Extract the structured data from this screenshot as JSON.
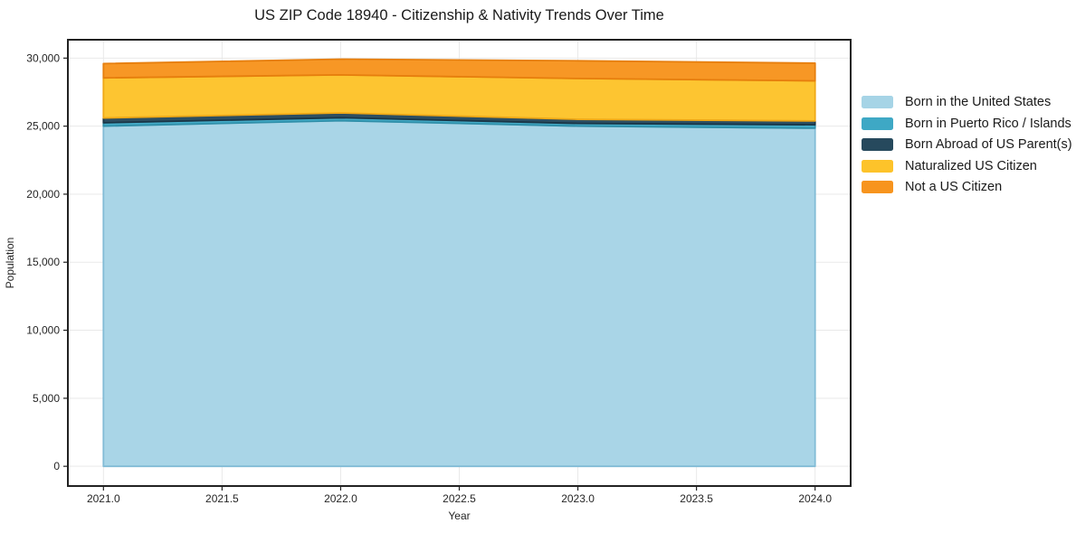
{
  "chart_data": {
    "type": "area",
    "stacked": true,
    "title": "US ZIP Code 18940 - Citizenship & Nativity Trends Over Time",
    "xlabel": "Year",
    "ylabel": "Population",
    "x": [
      2021,
      2022,
      2023,
      2024
    ],
    "series": [
      {
        "name": "Born in the United States",
        "color": "#a6d4e6",
        "edge_color": "#82bcd6",
        "values": [
          25000,
          25400,
          25000,
          24850
        ]
      },
      {
        "name": "Born in Puerto Rico / Islands",
        "color": "#3ea8c5",
        "edge_color": "#2f8fa9",
        "values": [
          250,
          220,
          200,
          250
        ]
      },
      {
        "name": "Born Abroad of US Parent(s)",
        "color": "#26495d",
        "edge_color": "#1a3647",
        "values": [
          350,
          350,
          300,
          280
        ]
      },
      {
        "name": "Naturalized US Citizen",
        "color": "#fdc32a",
        "edge_color": "#efa816",
        "values": [
          2950,
          2800,
          3000,
          2950
        ]
      },
      {
        "name": "Not a US Citizen",
        "color": "#f7941e",
        "edge_color": "#e67e0d",
        "values": [
          1050,
          1150,
          1300,
          1300
        ]
      }
    ],
    "xticks": [
      "2021.0",
      "2021.5",
      "2022.0",
      "2022.5",
      "2023.0",
      "2023.5",
      "2024.0"
    ],
    "xtick_values": [
      2021,
      2021.5,
      2022,
      2022.5,
      2023,
      2023.5,
      2024
    ],
    "yticks": [
      "0",
      "5,000",
      "10,000",
      "15,000",
      "20,000",
      "25,000",
      "30,000"
    ],
    "ytick_values": [
      0,
      5000,
      10000,
      15000,
      20000,
      25000,
      30000
    ],
    "xlim": [
      2020.85,
      2024.15
    ],
    "ylim": [
      -1450,
      31350
    ],
    "grid": true,
    "legend_position": "right-outside",
    "colors": {
      "spine": "#222222",
      "grid": "#e9e9e9",
      "tick_label": "#262626"
    }
  }
}
